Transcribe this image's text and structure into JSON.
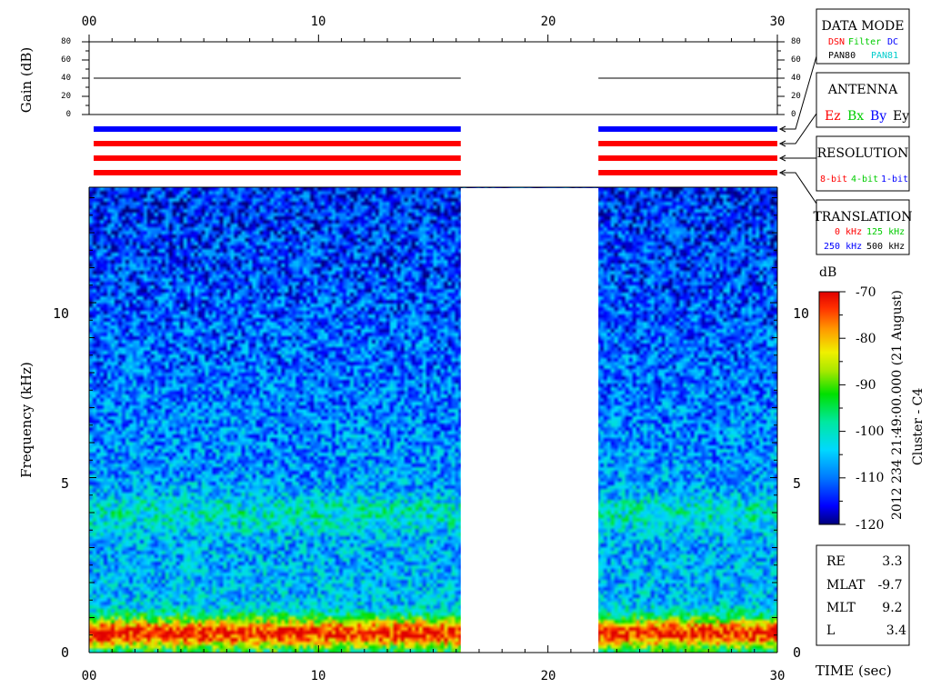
{
  "chart_data": {
    "type": "heatmap",
    "title": "",
    "xlabel": "TIME (sec)",
    "x_ticks": [
      "00",
      "10",
      "20",
      "30"
    ],
    "xlim": [
      0,
      30
    ],
    "ylabel": "Frequency (kHz)",
    "y_ticks": [
      "0",
      "5",
      "10"
    ],
    "ylim": [
      0,
      13.3
    ],
    "gain_panel": {
      "ylabel": "Gain (dB)",
      "ticks": [
        "0",
        "20",
        "40",
        "60",
        "80"
      ],
      "ylim": [
        0,
        80
      ],
      "segments": [
        {
          "t_start": 0.2,
          "t_end": 16.2,
          "gain_db": 40
        },
        {
          "t_start": 22.2,
          "t_end": 30.0,
          "gain_db": 40
        }
      ]
    },
    "data_gap": {
      "t_start": 16.2,
      "t_end": 22.2
    },
    "status_bars": [
      {
        "row": 1,
        "color": "#0000ff"
      },
      {
        "row": 2,
        "color": "#ff0000"
      },
      {
        "row": 3,
        "color": "#ff0000"
      },
      {
        "row": 4,
        "color": "#ff0000"
      }
    ],
    "colorbar": {
      "unit": "dB",
      "ticks": [
        "-70",
        "-80",
        "-90",
        "-100",
        "-110",
        "-120"
      ],
      "range": [
        -120,
        -70
      ]
    },
    "side_label_1": "2012 234 21:49:00.000 (21 August)",
    "side_label_2": "Cluster - C4",
    "features": [
      {
        "name": "intense band",
        "f_min_khz": 0.2,
        "f_max_khz": 0.8,
        "level_db": -72
      },
      {
        "name": "enhanced band",
        "f_min_khz": 3.6,
        "f_max_khz": 4.3,
        "level_db": -100
      }
    ]
  },
  "legend": {
    "data_mode": {
      "title": "DATA MODE",
      "items": [
        {
          "text": "DSN",
          "color": "#ff0000"
        },
        {
          "text": "Filter",
          "color": "#00cc00"
        },
        {
          "text": "DC",
          "color": "#0000ff"
        },
        {
          "text": "PAN80",
          "color": "#000000"
        },
        {
          "text": "PAN81",
          "color": "#00cccc"
        }
      ]
    },
    "antenna": {
      "title": "ANTENNA",
      "items": [
        {
          "text": "Ez",
          "color": "#ff0000"
        },
        {
          "text": "Bx",
          "color": "#00cc00"
        },
        {
          "text": "By",
          "color": "#0000ff"
        },
        {
          "text": "Ey",
          "color": "#000000"
        }
      ]
    },
    "resolution": {
      "title": "RESOLUTION",
      "items": [
        {
          "text": "8-bit",
          "color": "#ff0000"
        },
        {
          "text": "4-bit",
          "color": "#00cc00"
        },
        {
          "text": "1-bit",
          "color": "#0000ff"
        }
      ]
    },
    "translation": {
      "title": "TRANSLATION",
      "items": [
        {
          "text": "0 kHz",
          "color": "#ff0000"
        },
        {
          "text": "125 kHz",
          "color": "#00cc00"
        },
        {
          "text": "250 kHz",
          "color": "#0000ff"
        },
        {
          "text": "500 kHz",
          "color": "#000000"
        }
      ]
    }
  },
  "orbit": {
    "rows": [
      {
        "label": "RE",
        "value": "3.3"
      },
      {
        "label": "MLAT",
        "value": "-9.7"
      },
      {
        "label": "MLT",
        "value": "9.2"
      },
      {
        "label": "L",
        "value": "3.4"
      }
    ]
  }
}
